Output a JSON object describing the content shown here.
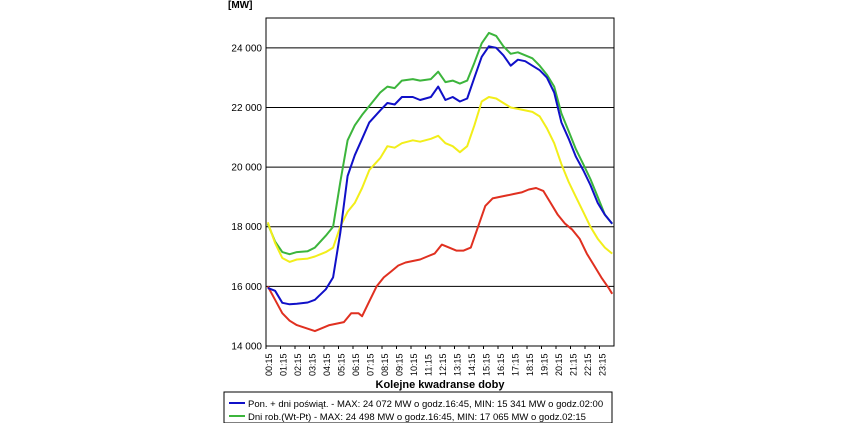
{
  "chart_data": {
    "type": "line",
    "ylabel": "[MW]",
    "xlabel": "Kolejne kwadranse doby",
    "ylim": [
      14000,
      25000
    ],
    "yticks": [
      14000,
      16000,
      18000,
      20000,
      22000,
      24000
    ],
    "ytick_labels": [
      "14 000",
      "16 000",
      "18 000",
      "20 000",
      "22 000",
      "24 000"
    ],
    "x_count": 96,
    "xtick_labels": [
      "00:15",
      "01:15",
      "02:15",
      "03:15",
      "04:15",
      "05:15",
      "06:15",
      "07:15",
      "08:15",
      "09:15",
      "10:15",
      "11:15",
      "12:15",
      "13:15",
      "14:15",
      "15:15",
      "16:15",
      "17:15",
      "18:15",
      "19:15",
      "20:15",
      "21:15",
      "22:15",
      "23:15"
    ],
    "grid": true,
    "legend_position": "bottom",
    "series": [
      {
        "name": "Pon. + dni poświąt. - MAX: 24 072 MW o godz.16:45, MIN: 15 341 MW o godz.02:00",
        "color": "#1010c8",
        "points": [
          [
            0,
            15950
          ],
          [
            2,
            15850
          ],
          [
            4,
            15450
          ],
          [
            6,
            15400
          ],
          [
            8,
            15420
          ],
          [
            11,
            15460
          ],
          [
            13,
            15550
          ],
          [
            16,
            15900
          ],
          [
            18,
            16300
          ],
          [
            20,
            17800
          ],
          [
            22,
            19700
          ],
          [
            24,
            20400
          ],
          [
            26,
            20950
          ],
          [
            28,
            21500
          ],
          [
            31,
            21900
          ],
          [
            33,
            22150
          ],
          [
            35,
            22100
          ],
          [
            37,
            22350
          ],
          [
            40,
            22350
          ],
          [
            42,
            22250
          ],
          [
            45,
            22350
          ],
          [
            47,
            22700
          ],
          [
            49,
            22250
          ],
          [
            51,
            22350
          ],
          [
            53,
            22200
          ],
          [
            55,
            22300
          ],
          [
            57,
            23000
          ],
          [
            59,
            23700
          ],
          [
            61,
            24050
          ],
          [
            63,
            24000
          ],
          [
            65,
            23750
          ],
          [
            67,
            23400
          ],
          [
            69,
            23600
          ],
          [
            71,
            23550
          ],
          [
            73,
            23400
          ],
          [
            75,
            23250
          ],
          [
            77,
            23000
          ],
          [
            79,
            22500
          ],
          [
            81,
            21500
          ],
          [
            83,
            20950
          ],
          [
            85,
            20350
          ],
          [
            87,
            19900
          ],
          [
            89,
            19400
          ],
          [
            91,
            18800
          ],
          [
            93,
            18400
          ],
          [
            95,
            18100
          ]
        ]
      },
      {
        "name": "Dni rob.(Wt-Pt) - MAX: 24 498 MW o godz.16:45, MIN: 17 065 MW o godz.02:15",
        "color": "#3cb53c",
        "points": [
          [
            0,
            18100
          ],
          [
            2,
            17500
          ],
          [
            4,
            17150
          ],
          [
            6,
            17080
          ],
          [
            8,
            17150
          ],
          [
            11,
            17180
          ],
          [
            13,
            17300
          ],
          [
            16,
            17700
          ],
          [
            18,
            18000
          ],
          [
            20,
            19500
          ],
          [
            22,
            20900
          ],
          [
            24,
            21400
          ],
          [
            26,
            21750
          ],
          [
            28,
            22050
          ],
          [
            31,
            22500
          ],
          [
            33,
            22700
          ],
          [
            35,
            22650
          ],
          [
            37,
            22900
          ],
          [
            40,
            22950
          ],
          [
            42,
            22900
          ],
          [
            45,
            22950
          ],
          [
            47,
            23200
          ],
          [
            49,
            22850
          ],
          [
            51,
            22900
          ],
          [
            53,
            22800
          ],
          [
            55,
            22900
          ],
          [
            57,
            23500
          ],
          [
            59,
            24150
          ],
          [
            61,
            24500
          ],
          [
            63,
            24400
          ],
          [
            65,
            24050
          ],
          [
            67,
            23800
          ],
          [
            69,
            23850
          ],
          [
            71,
            23750
          ],
          [
            73,
            23650
          ],
          [
            75,
            23400
          ],
          [
            77,
            23100
          ],
          [
            79,
            22700
          ],
          [
            81,
            21800
          ],
          [
            83,
            21200
          ],
          [
            85,
            20600
          ],
          [
            87,
            20100
          ],
          [
            89,
            19600
          ],
          [
            91,
            19000
          ],
          [
            93,
            18400
          ],
          [
            95,
            18100
          ]
        ]
      },
      {
        "name": "",
        "color": "#f2ee1a",
        "points": [
          [
            0,
            18150
          ],
          [
            2,
            17450
          ],
          [
            4,
            16950
          ],
          [
            6,
            16820
          ],
          [
            8,
            16900
          ],
          [
            11,
            16930
          ],
          [
            13,
            17000
          ],
          [
            16,
            17150
          ],
          [
            18,
            17300
          ],
          [
            20,
            18000
          ],
          [
            22,
            18500
          ],
          [
            24,
            18800
          ],
          [
            26,
            19300
          ],
          [
            28,
            19900
          ],
          [
            31,
            20300
          ],
          [
            33,
            20700
          ],
          [
            35,
            20650
          ],
          [
            37,
            20800
          ],
          [
            40,
            20900
          ],
          [
            42,
            20850
          ],
          [
            45,
            20950
          ],
          [
            47,
            21050
          ],
          [
            49,
            20800
          ],
          [
            51,
            20700
          ],
          [
            53,
            20500
          ],
          [
            55,
            20700
          ],
          [
            57,
            21400
          ],
          [
            59,
            22200
          ],
          [
            61,
            22350
          ],
          [
            63,
            22300
          ],
          [
            65,
            22150
          ],
          [
            67,
            22000
          ],
          [
            69,
            21950
          ],
          [
            71,
            21900
          ],
          [
            73,
            21850
          ],
          [
            75,
            21700
          ],
          [
            77,
            21300
          ],
          [
            79,
            20800
          ],
          [
            81,
            20100
          ],
          [
            83,
            19500
          ],
          [
            85,
            19000
          ],
          [
            87,
            18500
          ],
          [
            89,
            18000
          ],
          [
            91,
            17600
          ],
          [
            93,
            17300
          ],
          [
            95,
            17100
          ]
        ]
      },
      {
        "name": "",
        "color": "#e03020",
        "points": [
          [
            0,
            16000
          ],
          [
            2,
            15550
          ],
          [
            4,
            15100
          ],
          [
            6,
            14850
          ],
          [
            8,
            14700
          ],
          [
            11,
            14580
          ],
          [
            13,
            14500
          ],
          [
            15,
            14600
          ],
          [
            17,
            14700
          ],
          [
            19,
            14750
          ],
          [
            21,
            14800
          ],
          [
            23,
            15100
          ],
          [
            25,
            15100
          ],
          [
            26,
            15000
          ],
          [
            28,
            15500
          ],
          [
            30,
            16000
          ],
          [
            32,
            16300
          ],
          [
            34,
            16500
          ],
          [
            36,
            16700
          ],
          [
            38,
            16800
          ],
          [
            40,
            16850
          ],
          [
            42,
            16900
          ],
          [
            44,
            17000
          ],
          [
            46,
            17100
          ],
          [
            48,
            17400
          ],
          [
            50,
            17300
          ],
          [
            52,
            17200
          ],
          [
            54,
            17200
          ],
          [
            56,
            17300
          ],
          [
            58,
            18000
          ],
          [
            60,
            18700
          ],
          [
            62,
            18950
          ],
          [
            64,
            19000
          ],
          [
            66,
            19050
          ],
          [
            68,
            19100
          ],
          [
            70,
            19150
          ],
          [
            72,
            19250
          ],
          [
            74,
            19300
          ],
          [
            76,
            19200
          ],
          [
            78,
            18800
          ],
          [
            80,
            18400
          ],
          [
            82,
            18100
          ],
          [
            84,
            17900
          ],
          [
            86,
            17600
          ],
          [
            88,
            17100
          ],
          [
            90,
            16700
          ],
          [
            92,
            16300
          ],
          [
            94,
            15950
          ],
          [
            95,
            15750
          ]
        ]
      }
    ]
  }
}
